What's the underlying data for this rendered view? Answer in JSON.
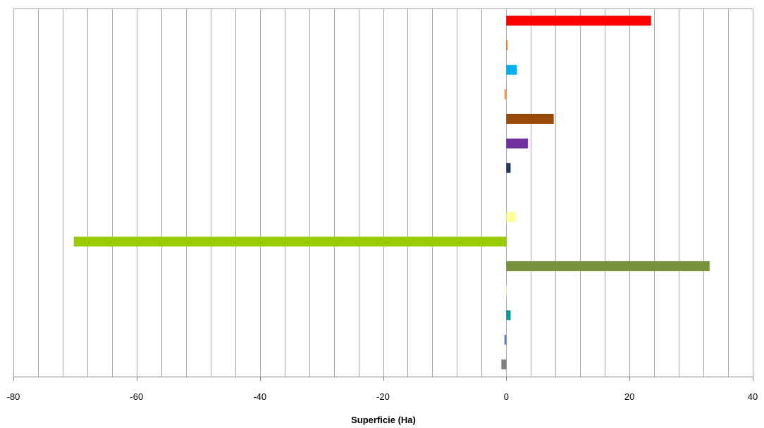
{
  "chart_data": {
    "type": "bar",
    "orientation": "horizontal",
    "xlabel": "Superficie (Ha)",
    "xlim": [
      -80,
      40
    ],
    "x_major_ticks": [
      -80,
      -60,
      -40,
      -20,
      0,
      20,
      40
    ],
    "x_minor_step": 4,
    "grid": true,
    "legend": "none",
    "bars": [
      {
        "value": 23.5,
        "color": "#ff0000"
      },
      {
        "value": 0.2,
        "color": "#ff6600"
      },
      {
        "value": 1.7,
        "color": "#00b0f0"
      },
      {
        "value": -0.3,
        "color": "#f79646"
      },
      {
        "value": 7.7,
        "color": "#984807"
      },
      {
        "value": 3.5,
        "color": "#7030a0"
      },
      {
        "value": 0.7,
        "color": "#1f3864"
      },
      {
        "value": 0.0,
        "color": "#ffffff"
      },
      {
        "value": 1.5,
        "color": "#ffff99"
      },
      {
        "value": -70.2,
        "color": "#99cc00"
      },
      {
        "value": 33.0,
        "color": "#76923c"
      },
      {
        "value": 0.1,
        "color": "#ffffcc"
      },
      {
        "value": 0.7,
        "color": "#009999"
      },
      {
        "value": -0.3,
        "color": "#4f81bd"
      },
      {
        "value": -0.8,
        "color": "#808080"
      }
    ]
  }
}
